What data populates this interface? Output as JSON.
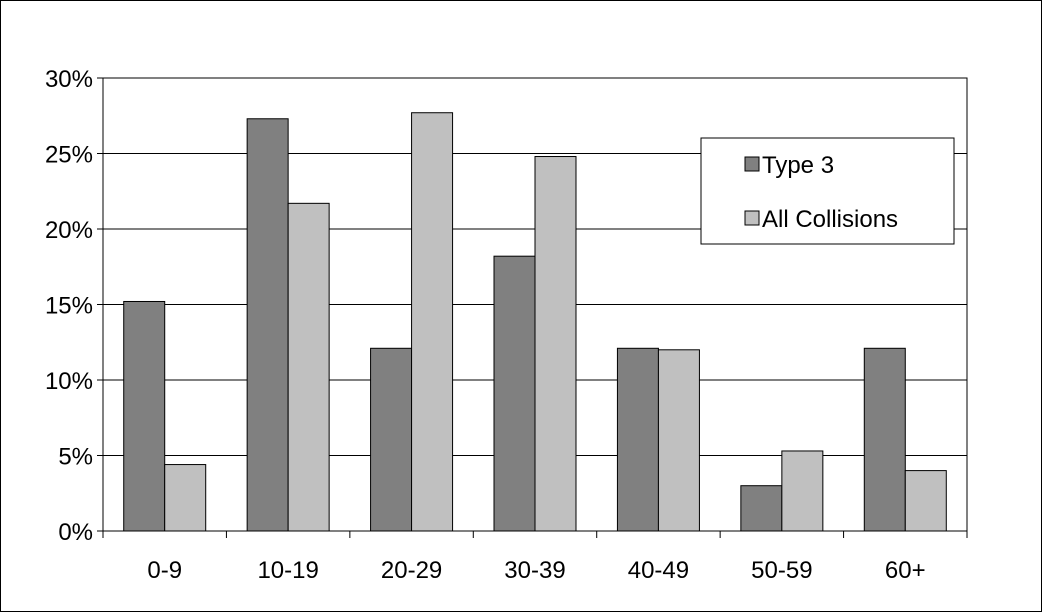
{
  "chart_data": {
    "type": "bar",
    "title": "",
    "xlabel": "",
    "ylabel": "",
    "categories": [
      "0-9",
      "10-19",
      "20-29",
      "30-39",
      "40-49",
      "50-59",
      "60+"
    ],
    "series": [
      {
        "name": "Type 3",
        "values": [
          15.2,
          27.3,
          12.1,
          18.2,
          12.1,
          3.0,
          12.1
        ],
        "color": "#808080"
      },
      {
        "name": "All Collisions",
        "values": [
          4.4,
          21.7,
          27.7,
          24.8,
          12.0,
          5.3,
          4.0
        ],
        "color": "#c0c0c0"
      }
    ],
    "ylim": [
      0,
      30
    ],
    "yticks": [
      0,
      5,
      10,
      15,
      20,
      25,
      30
    ],
    "ytick_labels": [
      "0%",
      "5%",
      "10%",
      "15%",
      "20%",
      "25%",
      "30%"
    ],
    "grid": true,
    "legend_position": "top-right"
  }
}
